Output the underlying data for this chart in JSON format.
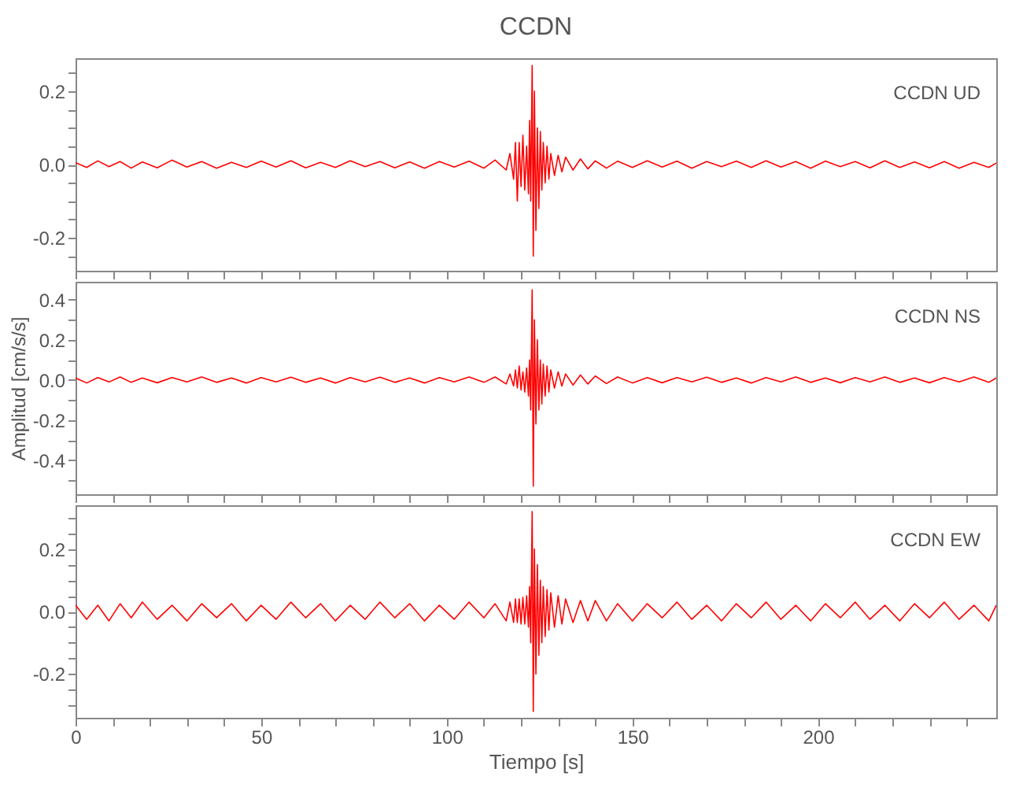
{
  "chart_data": [
    {
      "type": "line",
      "title": "CCDN",
      "tick_labels": "y",
      "marker": "none",
      "line_style": "solid",
      "xlim": [
        0,
        248
      ],
      "xticks": [
        0,
        {
          "value": 10,
          "label": null
        },
        {
          "value": 20,
          "label": null
        },
        {
          "value": 30,
          "label": null
        },
        {
          "value": 40,
          "label": null
        },
        50,
        {
          "value": 60,
          "label": null
        },
        {
          "value": 70,
          "label": null
        },
        {
          "value": 80,
          "label": null
        },
        {
          "value": 90,
          "label": null
        },
        100,
        {
          "value": 110,
          "label": null
        },
        {
          "value": 120,
          "label": null
        },
        {
          "value": 130,
          "label": null
        },
        {
          "value": 140,
          "label": null
        },
        150,
        {
          "value": 160,
          "label": null
        },
        {
          "value": 170,
          "label": null
        },
        {
          "value": 180,
          "label": null
        },
        {
          "value": 190,
          "label": null
        },
        200,
        {
          "value": 210,
          "label": null
        },
        {
          "value": 220,
          "label": null
        },
        {
          "value": 230,
          "label": null
        },
        {
          "value": 240,
          "label": null
        }
      ],
      "ylim": [
        -0.29,
        0.29
      ],
      "yticks": [
        {
          "value": -0.25,
          "label": null
        },
        {
          "value": -0.2,
          "label": "-0.2"
        },
        {
          "value": -0.15,
          "label": null
        },
        {
          "value": -0.1,
          "label": null
        },
        {
          "value": -0.05,
          "label": null
        },
        {
          "value": 0,
          "label": "0.0"
        },
        {
          "value": 0.05,
          "label": null
        },
        {
          "value": 0.1,
          "label": null
        },
        {
          "value": 0.15,
          "label": null
        },
        {
          "value": 0.2,
          "label": "0.2"
        },
        {
          "value": 0.25,
          "label": null
        }
      ],
      "x": [
        0,
        3,
        6,
        9,
        12,
        15,
        18,
        22,
        26,
        30,
        34,
        38,
        42,
        46,
        50,
        54,
        58,
        62,
        66,
        70,
        74,
        78,
        82,
        86,
        90,
        94,
        98,
        102,
        106,
        110,
        113,
        116,
        117,
        118,
        118.5,
        119,
        119.5,
        120,
        120.5,
        121,
        121.5,
        122,
        122.3,
        122.6,
        123,
        123.3,
        123.6,
        124,
        124.4,
        124.8,
        125.2,
        125.6,
        126,
        126.5,
        127,
        127.5,
        128,
        129,
        130,
        131,
        132,
        134,
        136,
        138,
        140,
        143,
        146,
        150,
        154,
        158,
        162,
        166,
        170,
        174,
        178,
        182,
        186,
        190,
        194,
        198,
        202,
        206,
        210,
        214,
        218,
        222,
        226,
        230,
        234,
        238,
        242,
        246,
        248
      ],
      "series": [
        {
          "name": "CCDN   UD",
          "color": "#ff0000",
          "values": [
            0.005,
            -0.008,
            0.01,
            -0.006,
            0.008,
            -0.01,
            0.007,
            -0.009,
            0.012,
            -0.007,
            0.008,
            -0.01,
            0.006,
            -0.008,
            0.009,
            -0.007,
            0.01,
            -0.009,
            0.006,
            -0.008,
            0.01,
            -0.006,
            0.008,
            -0.009,
            0.007,
            -0.01,
            0.008,
            -0.007,
            0.009,
            -0.01,
            0.012,
            -0.015,
            0.03,
            -0.04,
            0.06,
            -0.1,
            0.06,
            -0.06,
            0.08,
            -0.07,
            0.05,
            -0.08,
            0.12,
            -0.1,
            0.27,
            -0.25,
            0.2,
            -0.18,
            0.1,
            -0.12,
            0.09,
            -0.07,
            0.06,
            -0.05,
            0.05,
            -0.04,
            0.03,
            -0.03,
            0.025,
            -0.02,
            0.02,
            -0.015,
            0.015,
            -0.012,
            0.01,
            -0.01,
            0.009,
            -0.008,
            0.01,
            -0.007,
            0.009,
            -0.01,
            0.008,
            -0.006,
            0.009,
            -0.008,
            0.01,
            -0.007,
            0.008,
            -0.01,
            0.009,
            -0.006,
            0.008,
            -0.009,
            0.01,
            -0.008,
            0.007,
            -0.009,
            0.008,
            -0.01,
            0.006,
            -0.008,
            0.004
          ]
        }
      ]
    },
    {
      "type": "line",
      "ylabel": "Amplitud  [cm/s/s]",
      "tick_labels": "y",
      "marker": "none",
      "line_style": "solid",
      "xlim": [
        0,
        248
      ],
      "xticks": [
        0,
        {
          "value": 10,
          "label": null
        },
        {
          "value": 20,
          "label": null
        },
        {
          "value": 30,
          "label": null
        },
        {
          "value": 40,
          "label": null
        },
        50,
        {
          "value": 60,
          "label": null
        },
        {
          "value": 70,
          "label": null
        },
        {
          "value": 80,
          "label": null
        },
        {
          "value": 90,
          "label": null
        },
        100,
        {
          "value": 110,
          "label": null
        },
        {
          "value": 120,
          "label": null
        },
        {
          "value": 130,
          "label": null
        },
        {
          "value": 140,
          "label": null
        },
        150,
        {
          "value": 160,
          "label": null
        },
        {
          "value": 170,
          "label": null
        },
        {
          "value": 180,
          "label": null
        },
        {
          "value": 190,
          "label": null
        },
        200,
        {
          "value": 210,
          "label": null
        },
        {
          "value": 220,
          "label": null
        },
        {
          "value": 230,
          "label": null
        },
        {
          "value": 240,
          "label": null
        }
      ],
      "ylim": [
        -0.57,
        0.49
      ],
      "yticks": [
        {
          "value": -0.5,
          "label": null
        },
        {
          "value": -0.4,
          "label": "-0.4"
        },
        {
          "value": -0.3,
          "label": null
        },
        {
          "value": -0.2,
          "label": "-0.2"
        },
        {
          "value": -0.1,
          "label": null
        },
        {
          "value": 0,
          "label": "0.0"
        },
        {
          "value": 0.1,
          "label": null
        },
        {
          "value": 0.2,
          "label": "0.2"
        },
        {
          "value": 0.3,
          "label": null
        },
        {
          "value": 0.4,
          "label": "0.4"
        }
      ],
      "x": [
        0,
        3,
        6,
        9,
        12,
        15,
        18,
        22,
        26,
        30,
        34,
        38,
        42,
        46,
        50,
        54,
        58,
        62,
        66,
        70,
        74,
        78,
        82,
        86,
        90,
        94,
        98,
        102,
        106,
        110,
        113,
        116,
        117,
        118,
        118.5,
        119,
        119.5,
        120,
        120.5,
        121,
        121.5,
        122,
        122.3,
        122.6,
        123,
        123.3,
        123.6,
        124,
        124.4,
        124.8,
        125.2,
        125.6,
        126,
        126.5,
        127,
        127.5,
        128,
        129,
        130,
        131,
        132,
        134,
        136,
        138,
        140,
        143,
        146,
        150,
        154,
        158,
        162,
        166,
        170,
        174,
        178,
        182,
        186,
        190,
        194,
        198,
        202,
        206,
        210,
        214,
        218,
        222,
        226,
        230,
        234,
        238,
        242,
        246,
        248
      ],
      "series": [
        {
          "name": "CCDN   NS",
          "color": "#ff0000",
          "values": [
            0.01,
            -0.015,
            0.012,
            -0.01,
            0.015,
            -0.012,
            0.01,
            -0.014,
            0.012,
            -0.01,
            0.015,
            -0.012,
            0.01,
            -0.015,
            0.012,
            -0.01,
            0.014,
            -0.012,
            0.01,
            -0.015,
            0.012,
            -0.01,
            0.014,
            -0.012,
            0.01,
            -0.015,
            0.012,
            -0.01,
            0.015,
            -0.012,
            0.015,
            -0.02,
            0.03,
            -0.03,
            0.05,
            -0.04,
            0.07,
            -0.05,
            0.04,
            -0.06,
            0.06,
            -0.08,
            0.1,
            -0.15,
            0.45,
            -0.53,
            0.3,
            -0.22,
            0.2,
            -0.15,
            0.1,
            -0.12,
            0.08,
            -0.08,
            0.07,
            -0.06,
            0.05,
            -0.04,
            0.04,
            -0.03,
            0.03,
            -0.025,
            0.025,
            -0.02,
            0.02,
            -0.018,
            0.015,
            -0.015,
            0.012,
            -0.014,
            0.012,
            -0.01,
            0.014,
            -0.012,
            0.01,
            -0.015,
            0.012,
            -0.01,
            0.015,
            -0.012,
            0.01,
            -0.014,
            0.012,
            -0.01,
            0.015,
            -0.012,
            0.01,
            -0.014,
            0.012,
            -0.01,
            0.015,
            -0.012,
            0.01
          ]
        }
      ]
    },
    {
      "type": "line",
      "xlabel": "Tiempo  [s]",
      "marker": "none",
      "line_style": "solid",
      "xlim": [
        0,
        248
      ],
      "xticks": [
        0,
        {
          "value": 10,
          "label": null
        },
        {
          "value": 20,
          "label": null
        },
        {
          "value": 30,
          "label": null
        },
        {
          "value": 40,
          "label": null
        },
        50,
        {
          "value": 60,
          "label": null
        },
        {
          "value": 70,
          "label": null
        },
        {
          "value": 80,
          "label": null
        },
        {
          "value": 90,
          "label": null
        },
        100,
        {
          "value": 110,
          "label": null
        },
        {
          "value": 120,
          "label": null
        },
        {
          "value": 130,
          "label": null
        },
        {
          "value": 140,
          "label": null
        },
        150,
        {
          "value": 160,
          "label": null
        },
        {
          "value": 170,
          "label": null
        },
        {
          "value": 180,
          "label": null
        },
        {
          "value": 190,
          "label": null
        },
        200,
        {
          "value": 210,
          "label": null
        },
        {
          "value": 220,
          "label": null
        },
        {
          "value": 230,
          "label": null
        },
        {
          "value": 240,
          "label": null
        }
      ],
      "ylim": [
        -0.34,
        0.34
      ],
      "yticks": [
        {
          "value": -0.3,
          "label": null
        },
        {
          "value": -0.25,
          "label": null
        },
        {
          "value": -0.2,
          "label": "-0.2"
        },
        {
          "value": -0.15,
          "label": null
        },
        {
          "value": -0.1,
          "label": null
        },
        {
          "value": -0.05,
          "label": null
        },
        {
          "value": 0,
          "label": "0.0"
        },
        {
          "value": 0.05,
          "label": null
        },
        {
          "value": 0.1,
          "label": null
        },
        {
          "value": 0.15,
          "label": null
        },
        {
          "value": 0.2,
          "label": "0.2"
        },
        {
          "value": 0.25,
          "label": null
        },
        {
          "value": 0.3,
          "label": null
        }
      ],
      "x": [
        0,
        3,
        6,
        9,
        12,
        15,
        18,
        22,
        26,
        30,
        34,
        38,
        42,
        46,
        50,
        54,
        58,
        62,
        66,
        70,
        74,
        78,
        82,
        86,
        90,
        94,
        98,
        102,
        106,
        110,
        113,
        116,
        117,
        118,
        118.5,
        119,
        119.5,
        120,
        120.5,
        121,
        121.5,
        122,
        122.3,
        122.6,
        123,
        123.3,
        123.6,
        124,
        124.4,
        124.8,
        125.2,
        125.6,
        126,
        126.5,
        127,
        127.5,
        128,
        129,
        130,
        131,
        132,
        134,
        136,
        138,
        140,
        143,
        146,
        150,
        154,
        158,
        162,
        166,
        170,
        174,
        178,
        182,
        186,
        190,
        194,
        198,
        202,
        206,
        210,
        214,
        218,
        222,
        226,
        230,
        234,
        238,
        242,
        246,
        248
      ],
      "series": [
        {
          "name": "CCDN   EW",
          "color": "#ff0000",
          "values": [
            0.02,
            -0.025,
            0.02,
            -0.03,
            0.025,
            -0.02,
            0.03,
            -0.025,
            0.02,
            -0.03,
            0.025,
            -0.02,
            0.025,
            -0.03,
            0.02,
            -0.025,
            0.03,
            -0.02,
            0.025,
            -0.03,
            0.02,
            -0.025,
            0.03,
            -0.02,
            0.025,
            -0.03,
            0.02,
            -0.025,
            0.03,
            -0.02,
            0.025,
            -0.03,
            0.03,
            -0.035,
            0.04,
            -0.035,
            0.04,
            -0.04,
            0.045,
            -0.04,
            0.05,
            -0.05,
            0.08,
            -0.1,
            0.32,
            -0.32,
            0.2,
            -0.2,
            0.15,
            -0.14,
            0.1,
            -0.1,
            0.08,
            -0.08,
            0.07,
            -0.06,
            0.06,
            -0.05,
            0.05,
            -0.04,
            0.04,
            -0.035,
            0.035,
            -0.03,
            0.035,
            -0.03,
            0.025,
            -0.03,
            0.025,
            -0.02,
            0.03,
            -0.025,
            0.02,
            -0.03,
            0.025,
            -0.02,
            0.03,
            -0.025,
            0.02,
            -0.03,
            0.025,
            -0.02,
            0.03,
            -0.025,
            0.02,
            -0.03,
            0.025,
            -0.02,
            0.03,
            -0.025,
            0.02,
            -0.03,
            0.02
          ]
        }
      ]
    }
  ]
}
